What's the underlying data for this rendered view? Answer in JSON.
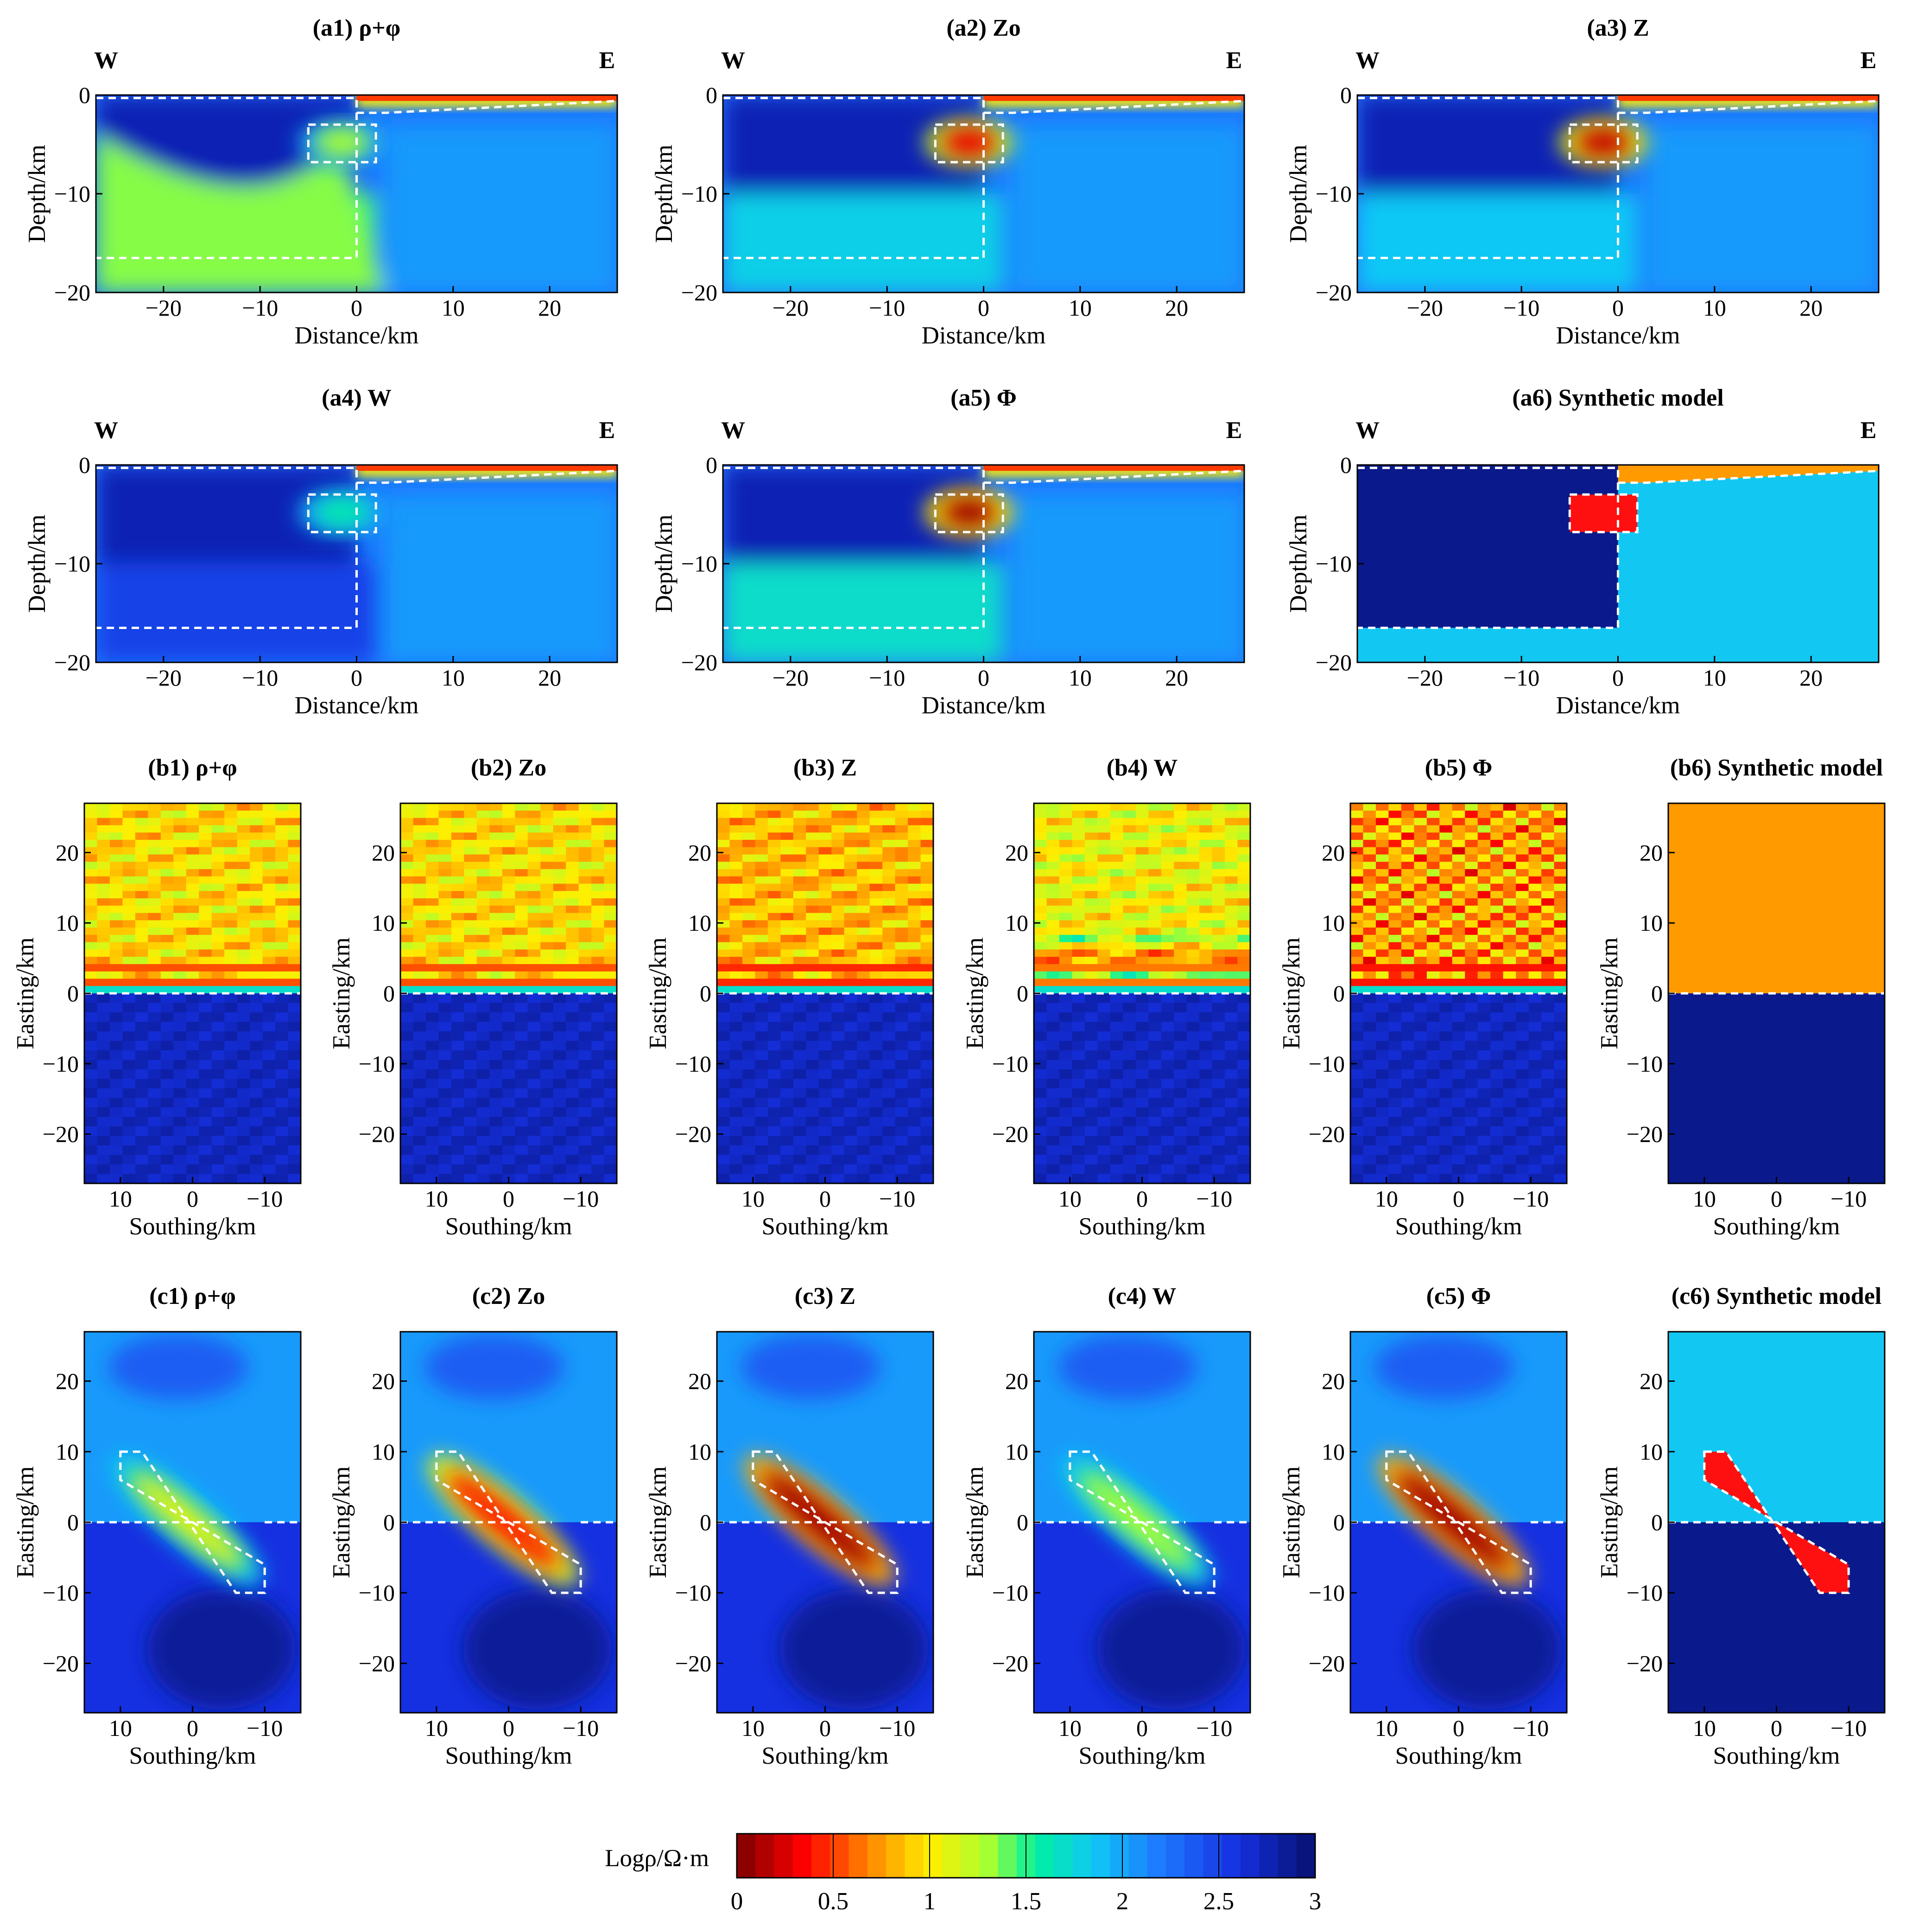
{
  "colorbar": {
    "label": "Logρ/Ω·m",
    "ticks": [
      "0",
      "0.5",
      "1",
      "1.5",
      "2",
      "2.5",
      "3"
    ],
    "range": [
      0,
      3
    ],
    "levels": 31
  },
  "colors": {
    "deep_blue": "#0a1a8c",
    "light_blue": "#12c8f2",
    "orange": "#ff9a00",
    "red": "#ff1010",
    "boundary": "#ffffff"
  },
  "chart_data": [
    {
      "id": "a1",
      "type": "heatmap",
      "title": "(a1) ρ+φ",
      "left_label": "W",
      "right_label": "E",
      "xlabel": "Distance/km",
      "ylabel": "Depth/km",
      "xlim": [
        -27,
        27
      ],
      "ylim": [
        -20,
        0
      ],
      "xticks": [
        "−20",
        "−10",
        "0",
        "10",
        "20"
      ],
      "yticks": [
        "0",
        "−10",
        "−20"
      ],
      "body_value": 1.3
    },
    {
      "id": "a2",
      "type": "heatmap",
      "title": "(a2) Zo",
      "left_label": "W",
      "right_label": "E",
      "xlabel": "Distance/km",
      "ylabel": "Depth/km",
      "xlim": [
        -27,
        27
      ],
      "ylim": [
        -20,
        0
      ],
      "xticks": [
        "−20",
        "−10",
        "0",
        "10",
        "20"
      ],
      "yticks": [
        "0",
        "−10",
        "−20"
      ],
      "body_value": 0.3
    },
    {
      "id": "a3",
      "type": "heatmap",
      "title": "(a3) Z",
      "left_label": "W",
      "right_label": "E",
      "xlabel": "Distance/km",
      "ylabel": "Depth/km",
      "xlim": [
        -27,
        27
      ],
      "ylim": [
        -20,
        0
      ],
      "xticks": [
        "−20",
        "−10",
        "0",
        "10",
        "20"
      ],
      "yticks": [
        "0",
        "−10",
        "−20"
      ],
      "body_value": 0.2
    },
    {
      "id": "a4",
      "type": "heatmap",
      "title": "(a4) W",
      "left_label": "W",
      "right_label": "E",
      "xlabel": "Distance/km",
      "ylabel": "Depth/km",
      "xlim": [
        -27,
        27
      ],
      "ylim": [
        -20,
        0
      ],
      "xticks": [
        "−20",
        "−10",
        "0",
        "10",
        "20"
      ],
      "yticks": [
        "0",
        "−10",
        "−20"
      ],
      "body_value": 1.6
    },
    {
      "id": "a5",
      "type": "heatmap",
      "title": "(a5) Φ",
      "left_label": "W",
      "right_label": "E",
      "xlabel": "Distance/km",
      "ylabel": "Depth/km",
      "xlim": [
        -27,
        27
      ],
      "ylim": [
        -20,
        0
      ],
      "xticks": [
        "−20",
        "−10",
        "0",
        "10",
        "20"
      ],
      "yticks": [
        "0",
        "−10",
        "−20"
      ],
      "body_value": 0.1
    },
    {
      "id": "a6",
      "type": "heatmap",
      "title": "(a6) Synthetic model",
      "left_label": "W",
      "right_label": "E",
      "xlabel": "Distance/km",
      "ylabel": "Depth/km",
      "xlim": [
        -27,
        27
      ],
      "ylim": [
        -20,
        0
      ],
      "xticks": [
        "−20",
        "−10",
        "0",
        "10",
        "20"
      ],
      "yticks": [
        "0",
        "−10",
        "−20"
      ],
      "body_value": 0.5
    },
    {
      "id": "b1",
      "type": "heatmap",
      "title": "(b1) ρ+φ",
      "xlabel": "Southing/km",
      "ylabel": "Easting/km",
      "xlim": [
        15,
        -15
      ],
      "ylim": [
        -27,
        27
      ],
      "xticks": [
        "10",
        "0",
        "−10"
      ],
      "yticks": [
        "20",
        "10",
        "0",
        "−10",
        "−20"
      ]
    },
    {
      "id": "b2",
      "type": "heatmap",
      "title": "(b2) Zo",
      "xlabel": "Southing/km",
      "ylabel": "Easting/km",
      "xlim": [
        15,
        -15
      ],
      "ylim": [
        -27,
        27
      ],
      "xticks": [
        "10",
        "0",
        "−10"
      ],
      "yticks": [
        "20",
        "10",
        "0",
        "−10",
        "−20"
      ]
    },
    {
      "id": "b3",
      "type": "heatmap",
      "title": "(b3) Z",
      "xlabel": "Southing/km",
      "ylabel": "Easting/km",
      "xlim": [
        15,
        -15
      ],
      "ylim": [
        -27,
        27
      ],
      "xticks": [
        "10",
        "0",
        "−10"
      ],
      "yticks": [
        "20",
        "10",
        "0",
        "−10",
        "−20"
      ]
    },
    {
      "id": "b4",
      "type": "heatmap",
      "title": "(b4) W",
      "xlabel": "Southing/km",
      "ylabel": "Easting/km",
      "xlim": [
        15,
        -15
      ],
      "ylim": [
        -27,
        27
      ],
      "xticks": [
        "10",
        "0",
        "−10"
      ],
      "yticks": [
        "20",
        "10",
        "0",
        "−10",
        "−20"
      ]
    },
    {
      "id": "b5",
      "type": "heatmap",
      "title": "(b5) Φ",
      "xlabel": "Southing/km",
      "ylabel": "Easting/km",
      "xlim": [
        15,
        -15
      ],
      "ylim": [
        -27,
        27
      ],
      "xticks": [
        "10",
        "0",
        "−10"
      ],
      "yticks": [
        "20",
        "10",
        "0",
        "−10",
        "−20"
      ]
    },
    {
      "id": "b6",
      "type": "heatmap",
      "title": "(b6) Synthetic model",
      "xlabel": "Southing/km",
      "ylabel": "Easting/km",
      "xlim": [
        15,
        -15
      ],
      "ylim": [
        -27,
        27
      ],
      "xticks": [
        "10",
        "0",
        "−10"
      ],
      "yticks": [
        "20",
        "10",
        "0",
        "−10",
        "−20"
      ]
    },
    {
      "id": "c1",
      "type": "heatmap",
      "title": "(c1) ρ+φ",
      "xlabel": "Southing/km",
      "ylabel": "Easting/km",
      "xlim": [
        15,
        -15
      ],
      "ylim": [
        -27,
        27
      ],
      "xticks": [
        "10",
        "0",
        "−10"
      ],
      "yticks": [
        "20",
        "10",
        "0",
        "−10",
        "−20"
      ],
      "body_value": 1.1
    },
    {
      "id": "c2",
      "type": "heatmap",
      "title": "(c2) Zo",
      "xlabel": "Southing/km",
      "ylabel": "Easting/km",
      "xlim": [
        15,
        -15
      ],
      "ylim": [
        -27,
        27
      ],
      "xticks": [
        "10",
        "0",
        "−10"
      ],
      "yticks": [
        "20",
        "10",
        "0",
        "−10",
        "−20"
      ],
      "body_value": 0.4
    },
    {
      "id": "c3",
      "type": "heatmap",
      "title": "(c3) Z",
      "xlabel": "Southing/km",
      "ylabel": "Easting/km",
      "xlim": [
        15,
        -15
      ],
      "ylim": [
        -27,
        27
      ],
      "xticks": [
        "10",
        "0",
        "−10"
      ],
      "yticks": [
        "20",
        "10",
        "0",
        "−10",
        "−20"
      ],
      "body_value": 0.1
    },
    {
      "id": "c4",
      "type": "heatmap",
      "title": "(c4) W",
      "xlabel": "Southing/km",
      "ylabel": "Easting/km",
      "xlim": [
        15,
        -15
      ],
      "ylim": [
        -27,
        27
      ],
      "xticks": [
        "10",
        "0",
        "−10"
      ],
      "yticks": [
        "20",
        "10",
        "0",
        "−10",
        "−20"
      ],
      "body_value": 1.3
    },
    {
      "id": "c5",
      "type": "heatmap",
      "title": "(c5) Φ",
      "xlabel": "Southing/km",
      "ylabel": "Easting/km",
      "xlim": [
        15,
        -15
      ],
      "ylim": [
        -27,
        27
      ],
      "xticks": [
        "10",
        "0",
        "−10"
      ],
      "yticks": [
        "20",
        "10",
        "0",
        "−10",
        "−20"
      ],
      "body_value": 0.1
    },
    {
      "id": "c6",
      "type": "heatmap",
      "title": "(c6) Synthetic model",
      "xlabel": "Southing/km",
      "ylabel": "Easting/km",
      "xlim": [
        15,
        -15
      ],
      "ylim": [
        -27,
        27
      ],
      "xticks": [
        "10",
        "0",
        "−10"
      ],
      "yticks": [
        "20",
        "10",
        "0",
        "−10",
        "−20"
      ],
      "body_value": 0.5
    }
  ]
}
